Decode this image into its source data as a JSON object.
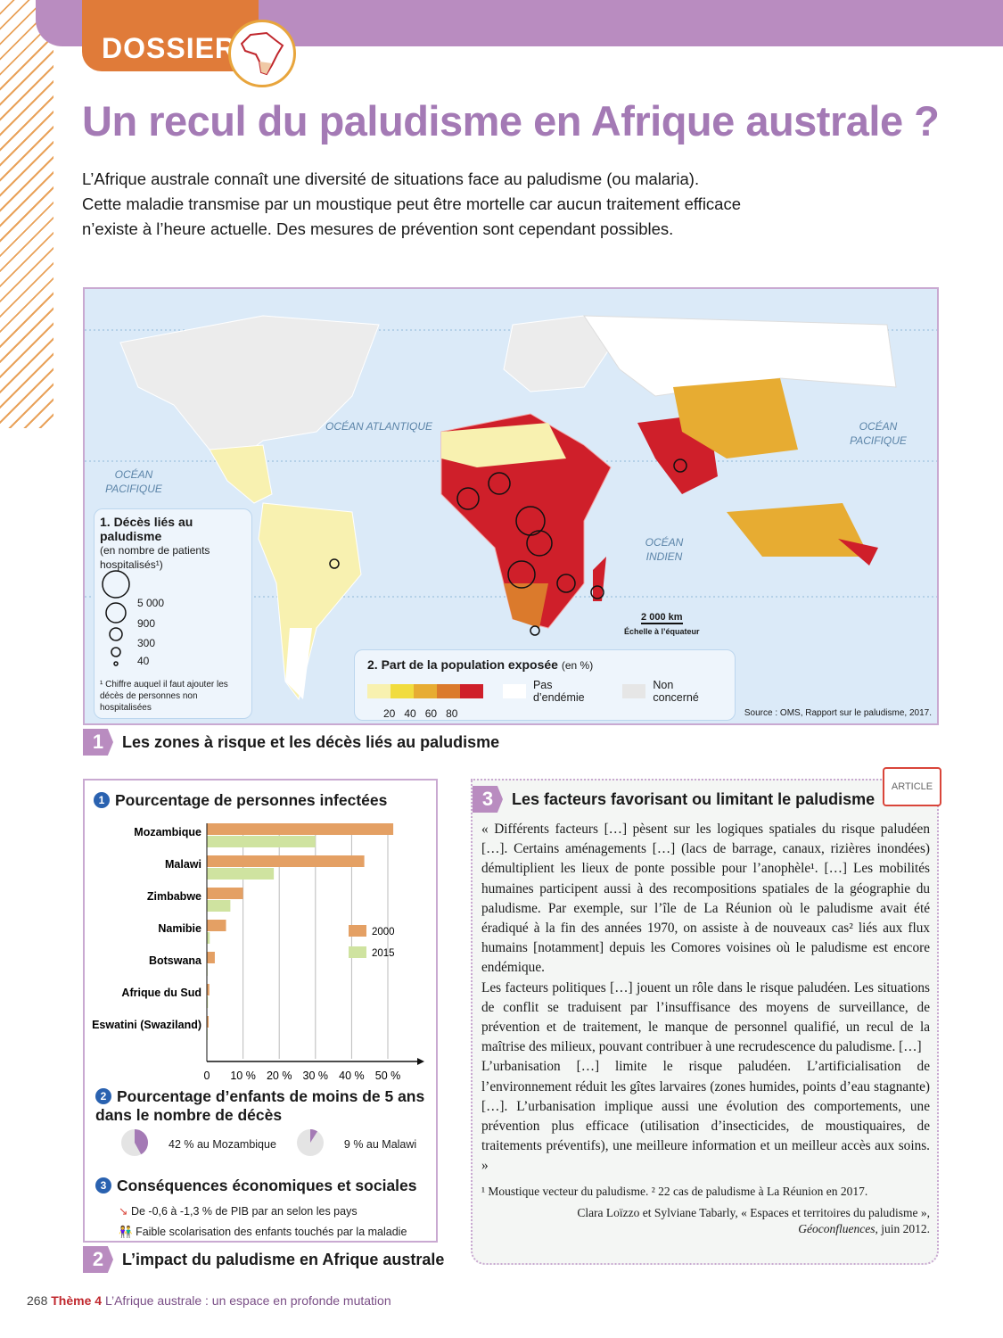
{
  "header": {
    "tag": "DOSSIER",
    "title": "Un recul du paludisme en Afrique australe ?"
  },
  "intro": [
    "L’Afrique australe connaît une diversité de situations face au paludisme (ou malaria).",
    "Cette maladie transmise par un moustique peut être mortelle car aucun traitement efficace",
    "n’existe à l’heure actuelle. Des mesures de prévention sont cependant possibles."
  ],
  "map": {
    "oceans": {
      "atl": "OCÉAN ATLANTIQUE",
      "pac_w": "OCÉAN PACIFIQUE",
      "pac_e": "OCÉAN PACIFIQUE",
      "ind": "OCÉAN INDIEN"
    },
    "legend1": {
      "title": "1. Décès liés au paludisme",
      "subtitle": "(en nombre de patients hospitalisés¹)",
      "values": [
        "5 000",
        "900",
        "300",
        "40"
      ],
      "note": "¹ Chiffre auquel il faut ajouter les décès de personnes non hospitalisées"
    },
    "legend2": {
      "title": "2. Part de la population exposée",
      "unit": "(en %)",
      "ticks": [
        "20",
        "40",
        "60",
        "80"
      ],
      "colors": [
        "#f8f1b0",
        "#f1dc3e",
        "#e7ac32",
        "#db7a2c",
        "#cf1f2a"
      ],
      "no_endemic": "Pas d’endémie",
      "not_concerned": "Non concerné"
    },
    "scale": "2 000 km",
    "scale_note": "Échelle à l’équateur",
    "source": "Source : OMS, Rapport sur le paludisme, 2017."
  },
  "doc1": {
    "number": "1",
    "caption": "Les zones à risque et les décès liés au paludisme"
  },
  "doc2": {
    "number": "2",
    "caption": "L’impact du paludisme en Afrique australe",
    "s1": {
      "n": "1",
      "title": "Pourcentage de personnes infectées"
    },
    "s2": {
      "n": "2",
      "title": "Pourcentage d’enfants de moins de 5 ans dans le nombre de décès",
      "pies": [
        {
          "label": "42 % au Mozambique",
          "value": 42
        },
        {
          "label": "9 % au Malawi",
          "value": 9
        }
      ]
    },
    "s3": {
      "n": "3",
      "title": "Conséquences économiques et sociales",
      "items": [
        "De -0,6 à -1,3 % de PIB par an selon les pays",
        "Faible scolarisation des enfants touchés par la maladie"
      ]
    }
  },
  "chart_data": {
    "type": "bar",
    "orientation": "horizontal",
    "categories": [
      "Mozambique",
      "Malawi",
      "Zimbabwe",
      "Namibie",
      "Botswana",
      "Afrique du Sud",
      "Eswatini (Swaziland)"
    ],
    "series": [
      {
        "name": "2000",
        "color": "#e4a064",
        "values": [
          51.5,
          43.5,
          10,
          5.3,
          2.2,
          0.7,
          0.5
        ]
      },
      {
        "name": "2015",
        "color": "#cfe3a0",
        "values": [
          30,
          18.5,
          6.5,
          0.8,
          0.2,
          0.3,
          0.2
        ]
      }
    ],
    "xticks": [
      "0",
      "10 %",
      "20 %",
      "30 %",
      "40 %",
      "50 %"
    ],
    "xlim": [
      0,
      58
    ],
    "grid": true,
    "legend": "right"
  },
  "doc3": {
    "number": "3",
    "title": "Les facteurs favorisant ou limitant le paludisme",
    "badge": "ARTICLE",
    "paragraphs": [
      "« Différents facteurs […] pèsent sur les logiques spatiales du risque paludéen […]. Certains aménagements […] (lacs de barrage, canaux, rizières inondées) démultiplient les lieux de ponte possible pour l’anophèle¹. […] Les mobilités humaines participent aussi à des recompositions spatiales de la géographie du paludisme. Par exemple, sur l’île de La Réunion où le paludisme avait été éradiqué à la fin des années 1970, on assiste à de nouveaux cas² liés aux flux humains [notamment] depuis les Comores voisines où le paludisme est encore endémique.",
      "Les facteurs politiques […] jouent un rôle dans le risque paludéen. Les situations de conflit se traduisent par l’insuffisance des moyens de surveillance, de prévention et de traitement, le manque de personnel qualifié, un recul de la maîtrise des milieux, pouvant contribuer à une recrudescence du paludisme. […]",
      "L’urbanisation […] limite le risque paludéen. L’artificialisation de l’environnement réduit les gîtes larvaires (zones humides, points d’eau stagnante) […]. L’urbanisation implique aussi une évolution des comportements, une prévention plus efficace (utilisation d’insecticides, de moustiquaires, de traitements préventifs), une meilleure information et un meilleur accès aux soins. »"
    ],
    "notes": "¹ Moustique vecteur du paludisme. ² 22 cas de paludisme à La Réunion en 2017.",
    "credit": "Clara Loïzzo et Sylviane Tabarly, « Espaces et territoires du paludisme »,",
    "credit_source": "Géoconfluences",
    "credit_date": ", juin 2012."
  },
  "footer": {
    "page": "268",
    "theme": "Thème 4",
    "text": "L’Afrique australe : un espace en profonde mutation"
  }
}
